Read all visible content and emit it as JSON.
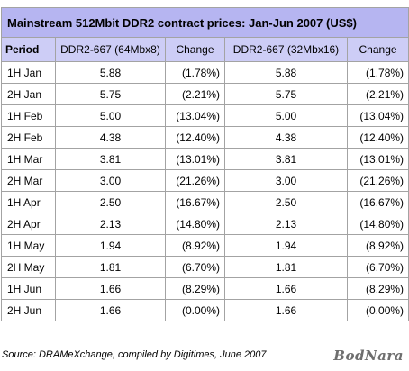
{
  "table": {
    "title": "Mainstream 512Mbit DDR2 contract prices: Jan-Jun 2007 (US$)",
    "headers": [
      "Period",
      "DDR2-667 (64Mbx8)",
      "Change",
      "DDR2-667 (32Mbx16)",
      "Change"
    ],
    "rows": [
      [
        "1H Jan",
        "5.88",
        "(1.78%)",
        "5.88",
        "(1.78%)"
      ],
      [
        "2H Jan",
        "5.75",
        "(2.21%)",
        "5.75",
        "(2.21%)"
      ],
      [
        "1H Feb",
        "5.00",
        "(13.04%)",
        "5.00",
        "(13.04%)"
      ],
      [
        "2H Feb",
        "4.38",
        "(12.40%)",
        "4.38",
        "(12.40%)"
      ],
      [
        "1H Mar",
        "3.81",
        "(13.01%)",
        "3.81",
        "(13.01%)"
      ],
      [
        "2H Mar",
        "3.00",
        "(21.26%)",
        "3.00",
        "(21.26%)"
      ],
      [
        "1H Apr",
        "2.50",
        "(16.67%)",
        "2.50",
        "(16.67%)"
      ],
      [
        "2H Apr",
        "2.13",
        "(14.80%)",
        "2.13",
        "(14.80%)"
      ],
      [
        "1H May",
        "1.94",
        "(8.92%)",
        "1.94",
        "(8.92%)"
      ],
      [
        "2H May",
        "1.81",
        "(6.70%)",
        "1.81",
        "(6.70%)"
      ],
      [
        "1H Jun",
        "1.66",
        "(8.29%)",
        "1.66",
        "(8.29%)"
      ],
      [
        "2H Jun",
        "1.66",
        "(0.00%)",
        "1.66",
        "(0.00%)"
      ]
    ]
  },
  "source": "Source: DRAMeXchange, compiled by Digitimes, June 2007",
  "watermark": "BodNara",
  "colors": {
    "title_bg": "#b6b5f1",
    "header_bg": "#cdcdf6",
    "border": "#a3a3a3"
  }
}
